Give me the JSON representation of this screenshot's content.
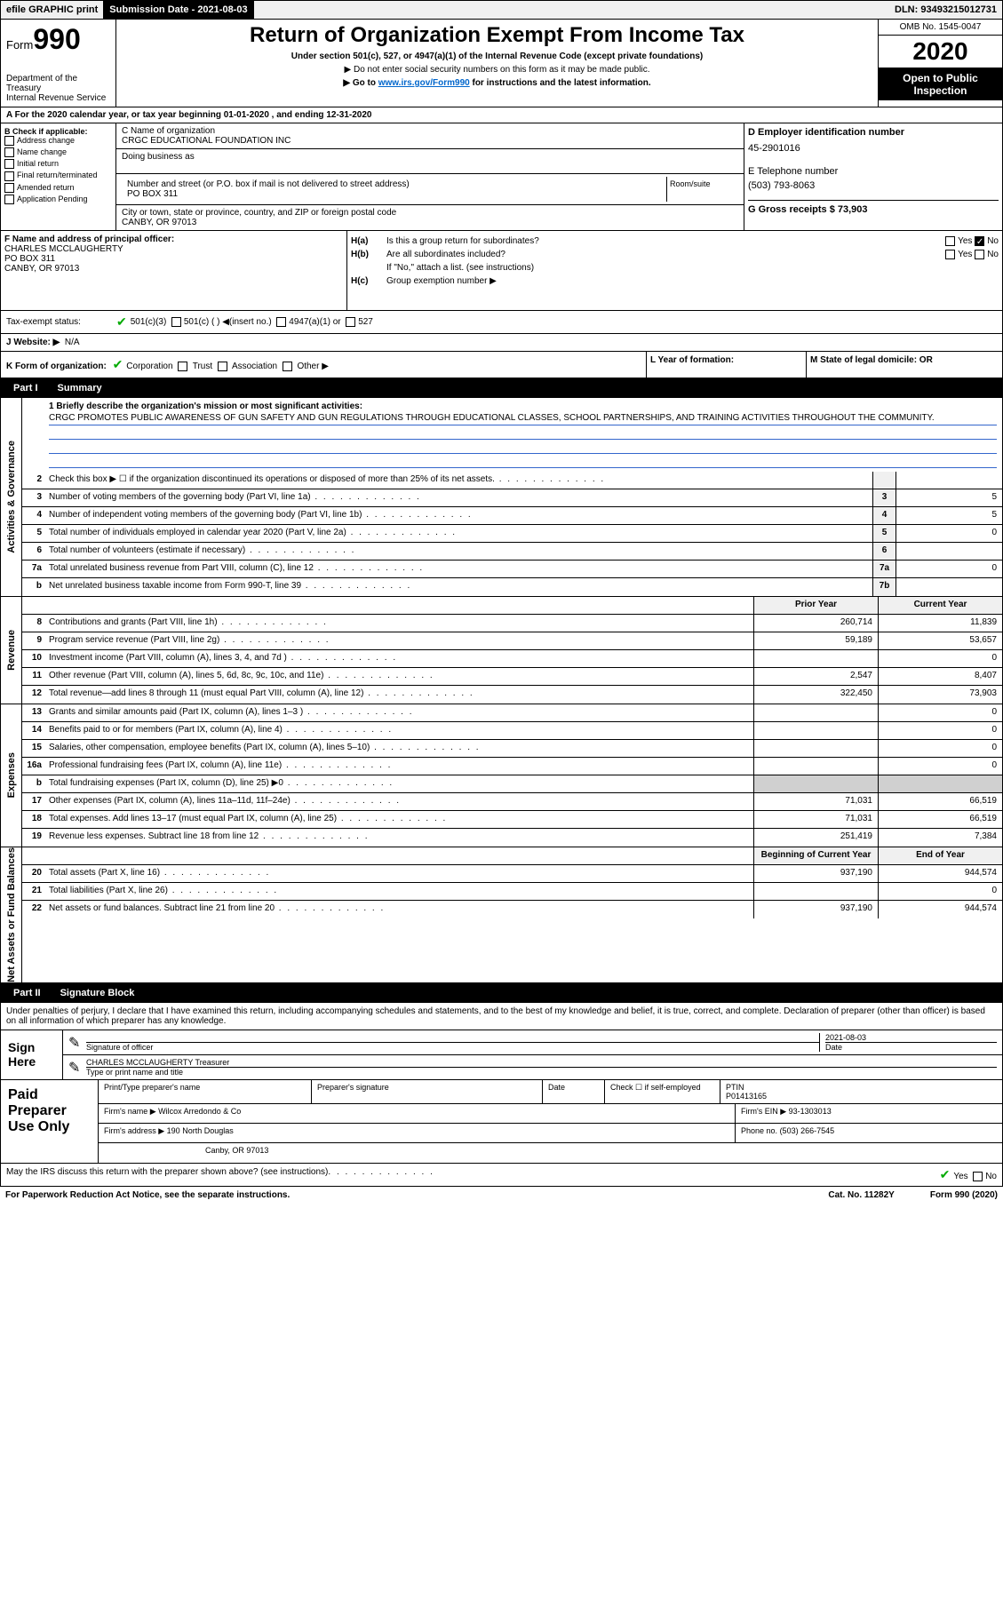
{
  "top": {
    "efile": "efile GRAPHIC print",
    "submission_label": "Submission Date - 2021-08-03",
    "dln": "DLN: 93493215012731"
  },
  "header": {
    "form_prefix": "Form",
    "form_num": "990",
    "dept": "Department of the Treasury",
    "irs": "Internal Revenue Service",
    "title": "Return of Organization Exempt From Income Tax",
    "sub1": "Under section 501(c), 527, or 4947(a)(1) of the Internal Revenue Code (except private foundations)",
    "sub2": "▶ Do not enter social security numbers on this form as it may be made public.",
    "sub3_pre": "▶ Go to ",
    "sub3_link": "www.irs.gov/Form990",
    "sub3_post": " for instructions and the latest information.",
    "omb": "OMB No. 1545-0047",
    "year": "2020",
    "open": "Open to Public",
    "inspection": "Inspection"
  },
  "row_a": "A For the 2020 calendar year, or tax year beginning 01-01-2020    , and ending 12-31-2020",
  "b": {
    "label": "B Check if applicable:",
    "o1": "Address change",
    "o2": "Name change",
    "o3": "Initial return",
    "o4": "Final return/terminated",
    "o5": "Amended return",
    "o6": "Application Pending"
  },
  "c": {
    "name_label": "C Name of organization",
    "name": "CRGC EDUCATIONAL FOUNDATION INC",
    "dba_label": "Doing business as",
    "addr_label": "Number and street (or P.O. box if mail is not delivered to street address)",
    "addr": "PO BOX 311",
    "room_label": "Room/suite",
    "city_label": "City or town, state or province, country, and ZIP or foreign postal code",
    "city": "CANBY, OR   97013"
  },
  "d": {
    "ein_label": "D Employer identification number",
    "ein": "45-2901016",
    "phone_label": "E Telephone number",
    "phone": "(503) 793-8063",
    "gross_label": "G Gross receipts $ 73,903"
  },
  "f": {
    "label": "F  Name and address of principal officer:",
    "name": "CHARLES MCCLAUGHERTY",
    "addr1": "PO BOX 311",
    "addr2": "CANBY, OR   97013"
  },
  "h": {
    "a_label": "H(a)",
    "a_text": "Is this a group return for subordinates?",
    "b_label": "H(b)",
    "b_text": "Are all subordinates included?",
    "note": "If \"No,\" attach a list. (see instructions)",
    "c_label": "H(c)",
    "c_text": "Group exemption number ▶"
  },
  "tax": {
    "label": "Tax-exempt status:",
    "o1": "501(c)(3)",
    "o2": "501(c) (  ) ◀(insert no.)",
    "o3": "4947(a)(1) or",
    "o4": "527"
  },
  "j": {
    "label": "J   Website: ▶",
    "val": "N/A"
  },
  "k": "K Form of organization:",
  "k_opts": {
    "corp": "Corporation",
    "trust": "Trust",
    "assoc": "Association",
    "other": "Other ▶"
  },
  "l": "L Year of formation:",
  "m": "M State of legal domicile: OR",
  "part1": {
    "tab": "Part I",
    "title": "Summary"
  },
  "mission": {
    "l1": "1   Briefly describe the organization's mission or most significant activities:",
    "text": "CRGC PROMOTES PUBLIC AWARENESS OF GUN SAFETY AND GUN REGULATIONS THROUGH EDUCATIONAL CLASSES, SCHOOL PARTNERSHIPS, AND TRAINING ACTIVITIES THROUGHOUT THE COMMUNITY."
  },
  "lines_gov": [
    {
      "n": "2",
      "t": "Check this box ▶ ☐  if the organization discontinued its operations or disposed of more than 25% of its net assets.",
      "nb": "",
      "v": ""
    },
    {
      "n": "3",
      "t": "Number of voting members of the governing body (Part VI, line 1a)",
      "nb": "3",
      "v": "5"
    },
    {
      "n": "4",
      "t": "Number of independent voting members of the governing body (Part VI, line 1b)",
      "nb": "4",
      "v": "5"
    },
    {
      "n": "5",
      "t": "Total number of individuals employed in calendar year 2020 (Part V, line 2a)",
      "nb": "5",
      "v": "0"
    },
    {
      "n": "6",
      "t": "Total number of volunteers (estimate if necessary)",
      "nb": "6",
      "v": ""
    },
    {
      "n": "7a",
      "t": "Total unrelated business revenue from Part VIII, column (C), line 12",
      "nb": "7a",
      "v": "0"
    },
    {
      "n": "b",
      "t": "Net unrelated business taxable income from Form 990-T, line 39",
      "nb": "7b",
      "v": ""
    }
  ],
  "py_header": "Prior Year",
  "cy_header": "Current Year",
  "lines_rev": [
    {
      "n": "8",
      "t": "Contributions and grants (Part VIII, line 1h)",
      "py": "260,714",
      "cy": "11,839"
    },
    {
      "n": "9",
      "t": "Program service revenue (Part VIII, line 2g)",
      "py": "59,189",
      "cy": "53,657"
    },
    {
      "n": "10",
      "t": "Investment income (Part VIII, column (A), lines 3, 4, and 7d )",
      "py": "",
      "cy": "0"
    },
    {
      "n": "11",
      "t": "Other revenue (Part VIII, column (A), lines 5, 6d, 8c, 9c, 10c, and 11e)",
      "py": "2,547",
      "cy": "8,407"
    },
    {
      "n": "12",
      "t": "Total revenue—add lines 8 through 11 (must equal Part VIII, column (A), line 12)",
      "py": "322,450",
      "cy": "73,903"
    }
  ],
  "lines_exp": [
    {
      "n": "13",
      "t": "Grants and similar amounts paid (Part IX, column (A), lines 1–3 )",
      "py": "",
      "cy": "0"
    },
    {
      "n": "14",
      "t": "Benefits paid to or for members (Part IX, column (A), line 4)",
      "py": "",
      "cy": "0"
    },
    {
      "n": "15",
      "t": "Salaries, other compensation, employee benefits (Part IX, column (A), lines 5–10)",
      "py": "",
      "cy": "0"
    },
    {
      "n": "16a",
      "t": "Professional fundraising fees (Part IX, column (A), line 11e)",
      "py": "",
      "cy": "0"
    },
    {
      "n": "b",
      "t": "Total fundraising expenses (Part IX, column (D), line 25) ▶0",
      "py": "shaded",
      "cy": "shaded"
    },
    {
      "n": "17",
      "t": "Other expenses (Part IX, column (A), lines 11a–11d, 11f–24e)",
      "py": "71,031",
      "cy": "66,519"
    },
    {
      "n": "18",
      "t": "Total expenses. Add lines 13–17 (must equal Part IX, column (A), line 25)",
      "py": "71,031",
      "cy": "66,519"
    },
    {
      "n": "19",
      "t": "Revenue less expenses. Subtract line 18 from line 12",
      "py": "251,419",
      "cy": "7,384"
    }
  ],
  "boy_header": "Beginning of Current Year",
  "eoy_header": "End of Year",
  "lines_net": [
    {
      "n": "20",
      "t": "Total assets (Part X, line 16)",
      "py": "937,190",
      "cy": "944,574"
    },
    {
      "n": "21",
      "t": "Total liabilities (Part X, line 26)",
      "py": "",
      "cy": "0"
    },
    {
      "n": "22",
      "t": "Net assets or fund balances. Subtract line 21 from line 20",
      "py": "937,190",
      "cy": "944,574"
    }
  ],
  "side": {
    "gov": "Activities & Governance",
    "rev": "Revenue",
    "exp": "Expenses",
    "net": "Net Assets or Fund Balances"
  },
  "part2": {
    "tab": "Part II",
    "title": "Signature Block"
  },
  "sig_decl": "Under penalties of perjury, I declare that I have examined this return, including accompanying schedules and statements, and to the best of my knowledge and belief, it is true, correct, and complete. Declaration of preparer (other than officer) is based on all information of which preparer has any knowledge.",
  "sign": {
    "here": "Sign Here",
    "sig_label": "Signature of officer",
    "date": "2021-08-03",
    "date_label": "Date",
    "name": "CHARLES MCCLAUGHERTY Treasurer",
    "type_label": "Type or print name and title"
  },
  "prep": {
    "label": "Paid Preparer Use Only",
    "name_label": "Print/Type preparer's name",
    "sig_label": "Preparer's signature",
    "date_label": "Date",
    "check_label": "Check ☐ if self-employed",
    "ptin_label": "PTIN",
    "ptin": "P01413165",
    "firm_label": "Firm's name    ▶",
    "firm": "Wilcox Arredondo & Co",
    "ein_label": "Firm's EIN ▶",
    "ein": "93-1303013",
    "addr_label": "Firm's address ▶",
    "addr1": "190 North Douglas",
    "addr2": "Canby, OR  97013",
    "phone_label": "Phone no.",
    "phone": "(503) 266-7545"
  },
  "discuss": "May the IRS discuss this return with the preparer shown above? (see instructions)",
  "footer": {
    "paperwork": "For Paperwork Reduction Act Notice, see the separate instructions.",
    "cat": "Cat. No. 11282Y",
    "form": "Form 990 (2020)"
  }
}
